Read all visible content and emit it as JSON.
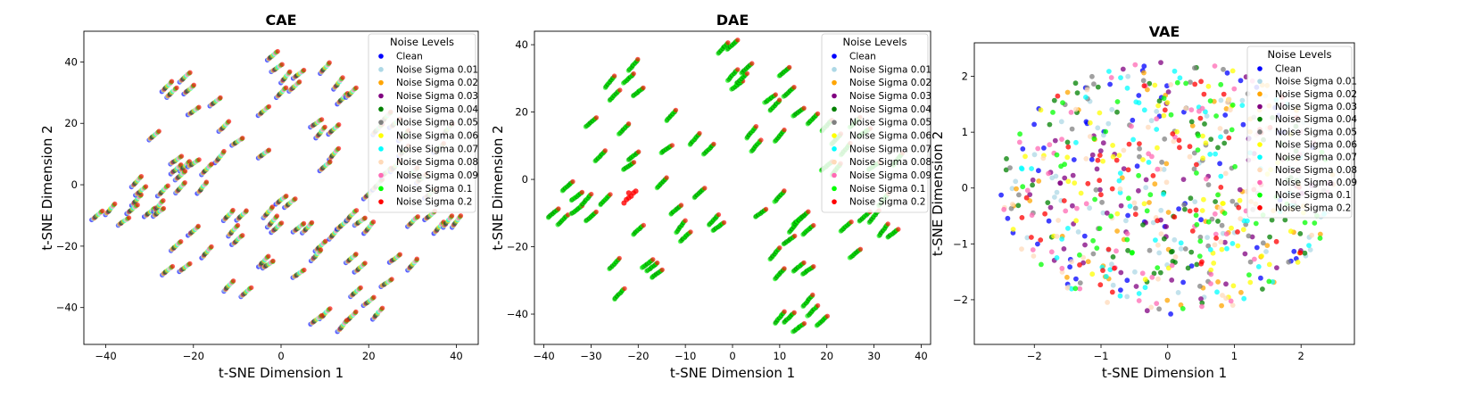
{
  "figure": {
    "panels": [
      {
        "id": "cae",
        "title": "CAE"
      },
      {
        "id": "dae",
        "title": "DAE"
      },
      {
        "id": "vae",
        "title": "VAE"
      }
    ]
  },
  "legend": {
    "title": "Noise Levels",
    "entries": [
      {
        "label": "Clean",
        "color": "#0000ff"
      },
      {
        "label": "Noise Sigma 0.01",
        "color": "#add8e6"
      },
      {
        "label": "Noise Sigma 0.02",
        "color": "#ffa500"
      },
      {
        "label": "Noise Sigma 0.03",
        "color": "#800080"
      },
      {
        "label": "Noise Sigma 0.04",
        "color": "#008000"
      },
      {
        "label": "Noise Sigma 0.05",
        "color": "#808080"
      },
      {
        "label": "Noise Sigma 0.06",
        "color": "#ffff00"
      },
      {
        "label": "Noise Sigma 0.07",
        "color": "#00ffff"
      },
      {
        "label": "Noise Sigma 0.08",
        "color": "#ffdab9"
      },
      {
        "label": "Noise Sigma 0.09",
        "color": "#ff69b4"
      },
      {
        "label": "Noise Sigma 0.1",
        "color": "#00ff00"
      },
      {
        "label": "Noise Sigma 0.2",
        "color": "#ff0000"
      }
    ]
  },
  "chart_data": [
    {
      "type": "scatter",
      "title": "CAE",
      "xlabel": "t-SNE Dimension 1",
      "ylabel": "t-SNE Dimension 2",
      "xlim": [
        -45,
        45
      ],
      "ylim": [
        -52,
        50
      ],
      "xticks": [
        -40,
        -20,
        0,
        20,
        40
      ],
      "yticks": [
        -40,
        -20,
        0,
        20,
        40
      ],
      "legend_position": "top-right",
      "grid": false,
      "clusters": [
        [
          -42,
          -10
        ],
        [
          -39,
          -8
        ],
        [
          -36,
          -12
        ],
        [
          -33,
          -5
        ],
        [
          -32,
          -2
        ],
        [
          -33,
          1
        ],
        [
          -34,
          -8
        ],
        [
          -30,
          -9
        ],
        [
          -28,
          -7
        ],
        [
          -28,
          -9
        ],
        [
          -29,
          16
        ],
        [
          -27,
          -2
        ],
        [
          -26,
          32
        ],
        [
          -25,
          30
        ],
        [
          -23,
          -1
        ],
        [
          -22,
          35
        ],
        [
          -21,
          31
        ],
        [
          -20,
          24
        ],
        [
          -20,
          -15
        ],
        [
          -17,
          -22
        ],
        [
          -15,
          27
        ],
        [
          -14,
          9
        ],
        [
          -24,
          5
        ],
        [
          -22,
          6
        ],
        [
          -24,
          8
        ],
        [
          -23,
          3
        ],
        [
          -20,
          7
        ],
        [
          -18,
          -1
        ],
        [
          -17,
          5
        ],
        [
          -13,
          19
        ],
        [
          -12,
          -10
        ],
        [
          -11,
          -15
        ],
        [
          -10,
          -18
        ],
        [
          -9,
          -10
        ],
        [
          -8,
          -35
        ],
        [
          -12,
          -33
        ],
        [
          -26,
          -28
        ],
        [
          -22,
          -27
        ],
        [
          -24,
          -20
        ],
        [
          -10,
          14
        ],
        [
          -4,
          24
        ],
        [
          -4,
          10
        ],
        [
          -3,
          -9
        ],
        [
          -2,
          -12
        ],
        [
          -4,
          -25
        ],
        [
          -3,
          -26
        ],
        [
          -2,
          42
        ],
        [
          -1,
          38
        ],
        [
          1,
          35
        ],
        [
          3,
          32
        ],
        [
          4,
          36
        ],
        [
          0,
          -5
        ],
        [
          2,
          -6
        ],
        [
          0,
          30
        ],
        [
          -1,
          -14
        ],
        [
          4,
          -14
        ],
        [
          6,
          -14
        ],
        [
          4,
          -29
        ],
        [
          8,
          20
        ],
        [
          9,
          17
        ],
        [
          12,
          18
        ],
        [
          14,
          28
        ],
        [
          16,
          30
        ],
        [
          13,
          33
        ],
        [
          10,
          38
        ],
        [
          12,
          10
        ],
        [
          10,
          6
        ],
        [
          9,
          -20
        ],
        [
          8,
          -23
        ],
        [
          12,
          -16
        ],
        [
          14,
          -13
        ],
        [
          16,
          -10
        ],
        [
          18,
          -12
        ],
        [
          20,
          -14
        ],
        [
          16,
          -24
        ],
        [
          18,
          -27
        ],
        [
          17,
          -35
        ],
        [
          20,
          -38
        ],
        [
          22,
          -42
        ],
        [
          16,
          -43
        ],
        [
          14,
          -46
        ],
        [
          10,
          -42
        ],
        [
          8,
          -44
        ],
        [
          20,
          -3
        ],
        [
          22,
          0
        ],
        [
          24,
          4
        ],
        [
          26,
          6
        ],
        [
          22,
          18
        ],
        [
          24,
          22
        ],
        [
          26,
          20
        ],
        [
          28,
          16
        ],
        [
          30,
          4
        ],
        [
          32,
          2
        ],
        [
          30,
          -12
        ],
        [
          34,
          -10
        ],
        [
          36,
          -14
        ],
        [
          38,
          -12
        ],
        [
          40,
          -12
        ],
        [
          30,
          -26
        ],
        [
          26,
          -24
        ],
        [
          24,
          -32
        ],
        [
          28,
          11
        ],
        [
          36,
          12
        ],
        [
          38,
          18
        ],
        [
          34,
          -3
        ]
      ]
    },
    {
      "type": "scatter",
      "title": "DAE",
      "xlabel": "t-SNE Dimension 1",
      "ylabel": "t-SNE Dimension 2",
      "xlim": [
        -42,
        42
      ],
      "ylim": [
        -49,
        44
      ],
      "xticks": [
        -40,
        -30,
        -20,
        -10,
        0,
        10,
        20,
        30,
        40
      ],
      "yticks": [
        -40,
        -20,
        0,
        20,
        40
      ],
      "legend_position": "top-right",
      "grid": false,
      "clusters": [
        [
          -38,
          -10
        ],
        [
          -36,
          -12
        ],
        [
          -35,
          -2
        ],
        [
          -33,
          -5
        ],
        [
          -33,
          -9
        ],
        [
          -31,
          -6
        ],
        [
          -30,
          -11
        ],
        [
          -30,
          17
        ],
        [
          -28,
          7
        ],
        [
          -27,
          -6
        ],
        [
          -26,
          29
        ],
        [
          -25,
          25
        ],
        [
          -25,
          -25
        ],
        [
          -24,
          -34
        ],
        [
          -23,
          15
        ],
        [
          -22,
          30
        ],
        [
          -21,
          34
        ],
        [
          -20,
          26
        ],
        [
          -22,
          4
        ],
        [
          -21,
          7
        ],
        [
          -20,
          -15
        ],
        [
          -18,
          -25
        ],
        [
          -17,
          -26
        ],
        [
          -16,
          -28
        ],
        [
          -15,
          -1
        ],
        [
          -14,
          9
        ],
        [
          -13,
          19
        ],
        [
          -12,
          -9
        ],
        [
          -11,
          -14
        ],
        [
          -10,
          -17
        ],
        [
          -8,
          12
        ],
        [
          -7,
          -4
        ],
        [
          -5,
          9
        ],
        [
          -4,
          -12
        ],
        [
          -3,
          -14
        ],
        [
          -2,
          39
        ],
        [
          0,
          40
        ],
        [
          0,
          31
        ],
        [
          1,
          28
        ],
        [
          2,
          30
        ],
        [
          3,
          33
        ],
        [
          4,
          14
        ],
        [
          5,
          10
        ],
        [
          6,
          -10
        ],
        [
          8,
          24
        ],
        [
          9,
          22
        ],
        [
          10,
          13
        ],
        [
          11,
          32
        ],
        [
          12,
          26
        ],
        [
          10,
          -5
        ],
        [
          9,
          -22
        ],
        [
          10,
          -28
        ],
        [
          12,
          -18
        ],
        [
          13,
          -14
        ],
        [
          14,
          -12
        ],
        [
          15,
          -11
        ],
        [
          16,
          -15
        ],
        [
          14,
          -26
        ],
        [
          16,
          -27
        ],
        [
          16,
          -36
        ],
        [
          17,
          -39
        ],
        [
          19,
          -42
        ],
        [
          14,
          -44
        ],
        [
          12,
          -41
        ],
        [
          10,
          -41
        ],
        [
          14,
          20
        ],
        [
          17,
          18
        ],
        [
          20,
          16
        ],
        [
          22,
          12
        ],
        [
          20,
          4
        ],
        [
          22,
          3
        ],
        [
          24,
          -14
        ],
        [
          26,
          -22
        ],
        [
          28,
          -11
        ],
        [
          30,
          -11
        ],
        [
          32,
          -15
        ],
        [
          34,
          -16
        ],
        [
          26,
          17
        ],
        [
          28,
          14
        ],
        [
          24,
          9
        ],
        [
          30,
          4
        ],
        [
          32,
          -6
        ],
        [
          35,
          6
        ]
      ],
      "outlier_cluster": {
        "series": "Noise Sigma 0.2",
        "points": [
          [
            -22,
            -4
          ],
          [
            -21.5,
            -5
          ],
          [
            -22.5,
            -6
          ],
          [
            -23,
            -7
          ],
          [
            -21,
            -4
          ],
          [
            -20.5,
            -3.5
          ],
          [
            -22,
            -5.5
          ]
        ]
      }
    },
    {
      "type": "scatter",
      "title": "VAE",
      "xlabel": "t-SNE Dimension 1",
      "ylabel": "t-SNE Dimension 2",
      "xlim": [
        -2.9,
        2.8
      ],
      "ylim": [
        -2.8,
        2.6
      ],
      "xticks": [
        -2,
        -1,
        0,
        1,
        2
      ],
      "yticks": [
        -2,
        -1,
        0,
        1,
        2
      ],
      "legend_position": "top-right",
      "grid": false,
      "distribution": {
        "shape": "disc",
        "center": [
          0,
          0
        ],
        "radius": 2.4,
        "points_per_series": 60,
        "mixing": "uniform across noise levels"
      }
    }
  ]
}
